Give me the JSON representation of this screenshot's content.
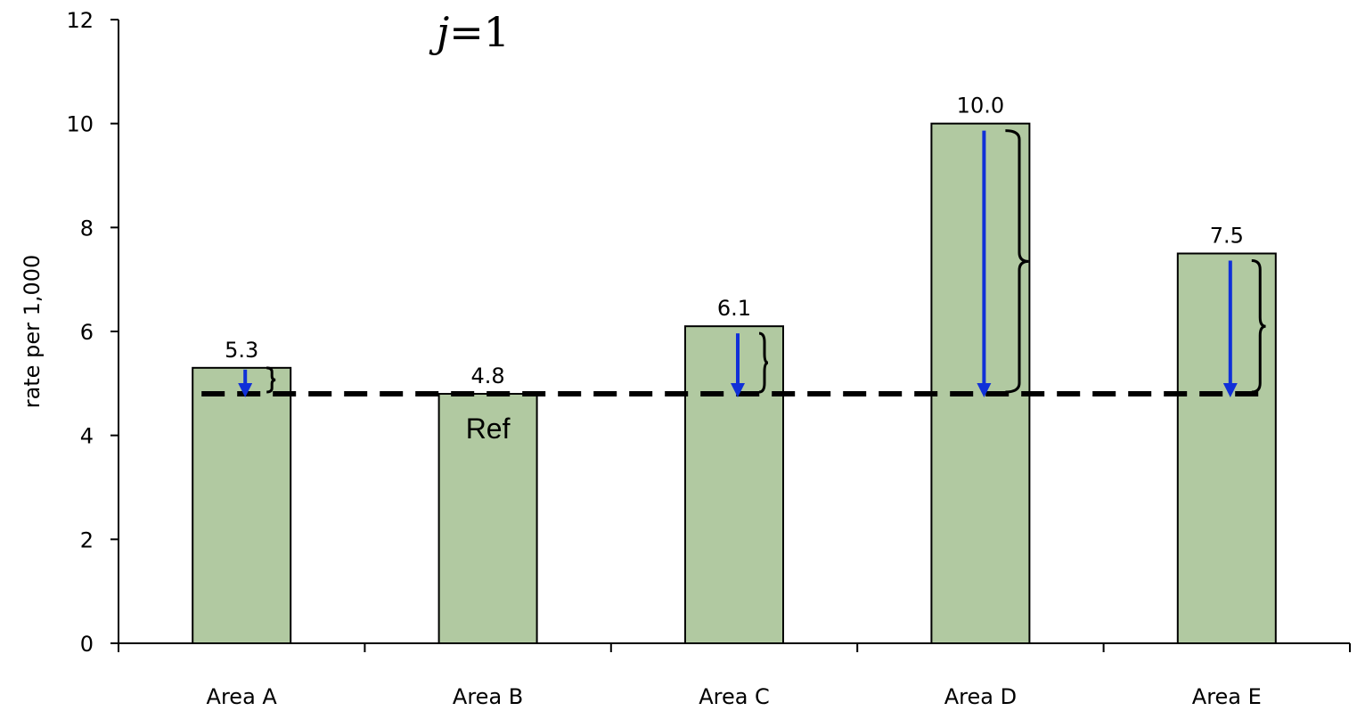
{
  "chart_data": {
    "type": "bar",
    "title_var": "j",
    "title_rest": "=1",
    "categories": [
      "Area A",
      "Area B",
      "Area C",
      "Area D",
      "Area E"
    ],
    "values": [
      5.3,
      4.8,
      6.1,
      10.0,
      7.5
    ],
    "value_labels": [
      "5.3",
      "4.8",
      "6.1",
      "10.0",
      "7.5"
    ],
    "ylabel": "rate per 1,000",
    "xlabel": "",
    "ylim": [
      0,
      12
    ],
    "yticks": [
      0,
      2,
      4,
      6,
      8,
      10,
      12
    ],
    "reference": {
      "category": "Area B",
      "value": 4.8,
      "label": "Ref",
      "line_style": "dashed"
    },
    "annotations": "downward blue arrows and curly braces from each bar top to the reference line",
    "grid": false,
    "legend": "none",
    "colors": {
      "bar_fill": "#b1c9a1",
      "bar_stroke": "#000000",
      "arrow": "#1030d8",
      "reference_line": "#000000",
      "brace": "#000000"
    }
  }
}
